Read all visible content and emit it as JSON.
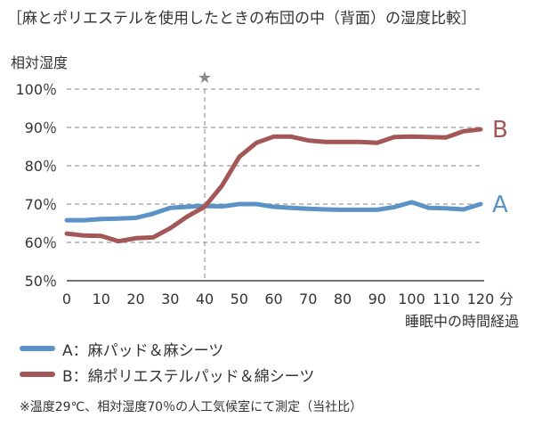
{
  "chart_data": {
    "type": "line",
    "title": "［麻とポリエステルを使用したときの布団の中（背面）の湿度比較］",
    "ylabel": "相対湿度",
    "xlabel": "睡眠中の時間経過",
    "x_unit": "分",
    "y_unit": "%",
    "xlim": [
      0,
      120
    ],
    "ylim": [
      50,
      100
    ],
    "x_ticks": [
      0,
      10,
      20,
      30,
      40,
      50,
      60,
      70,
      80,
      90,
      100,
      110,
      120
    ],
    "y_ticks": [
      50,
      60,
      70,
      80,
      90,
      100
    ],
    "y_tick_labels": [
      "50％",
      "60％",
      "70％",
      "80％",
      "90％",
      "100％"
    ],
    "grid": "horizontal dashed",
    "marker": {
      "x": 40,
      "symbol": "★"
    },
    "x": [
      0,
      5,
      10,
      15,
      20,
      25,
      30,
      35,
      40,
      45,
      50,
      55,
      60,
      65,
      70,
      75,
      80,
      85,
      90,
      95,
      100,
      105,
      110,
      115,
      120
    ],
    "series": [
      {
        "name": "A",
        "color": "#5b93c7",
        "values": [
          65.8,
          65.8,
          66.1,
          66.2,
          66.4,
          67.5,
          69.0,
          69.3,
          69.5,
          69.4,
          70.0,
          70.0,
          69.3,
          69.0,
          68.8,
          68.6,
          68.5,
          68.5,
          68.5,
          69.2,
          70.5,
          69.0,
          68.9,
          68.6,
          70.0
        ]
      },
      {
        "name": "B",
        "color": "#a35757",
        "values": [
          62.3,
          61.8,
          61.7,
          60.3,
          61.1,
          61.3,
          63.7,
          66.8,
          69.3,
          74.8,
          82.3,
          86.0,
          87.6,
          87.6,
          86.6,
          86.2,
          86.2,
          86.2,
          86.0,
          87.5,
          87.6,
          87.5,
          87.4,
          89.0,
          89.5
        ]
      }
    ]
  },
  "legend": [
    {
      "label": "A：麻パッド＆麻シーツ",
      "color": "#5b93c7"
    },
    {
      "label": "B：綿ポリエステルパッド＆綿シーツ",
      "color": "#a35757"
    }
  ],
  "footnote": "※温度29℃、相対湿度70％の人工気候室にて測定（当社比）"
}
